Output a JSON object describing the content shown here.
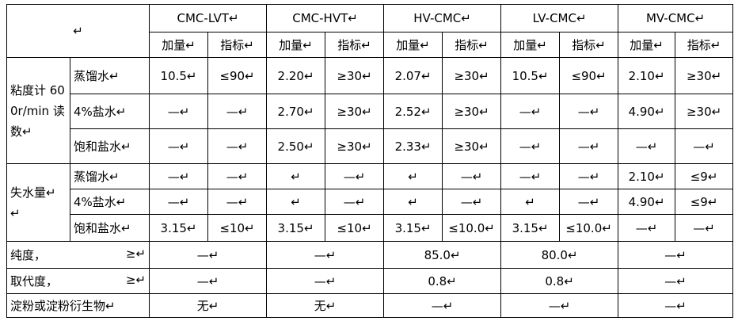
{
  "table": {
    "corner": "↵",
    "groups": [
      "CMC-LVT↵",
      "CMC-HVT↵",
      "HV-CMC↵",
      "LV-CMC↵",
      "MV-CMC↵"
    ],
    "subheaders": [
      "加量↵",
      "指标↵",
      "加量↵",
      "指标↵",
      "加量↵",
      "指标↵",
      "加量↵",
      "指标↵",
      "加量↵",
      "指标↵"
    ],
    "sections": [
      {
        "label": "粘度计 600r/min 读数↵",
        "rows": [
          {
            "label": "蒸馏水↵",
            "cells": [
              "10.5↵",
              "≤90↵",
              "2.20↵",
              "≥30↵",
              "2.07↵",
              "≥30↵",
              "10.5↵",
              "≤90↵",
              "2.10↵",
              "≥30↵"
            ]
          },
          {
            "label": "4%盐水↵",
            "cells": [
              "—↵",
              "—↵",
              "2.70↵",
              "≥30↵",
              "2.52↵",
              "≥30↵",
              "—↵",
              "—↵",
              "4.90↵",
              "≥30↵"
            ]
          },
          {
            "label": "饱和盐水↵",
            "cells": [
              "—↵",
              "—↵",
              "2.50↵",
              "≥30↵",
              "2.33↵",
              "≥30↵",
              "—↵",
              "—↵",
              "—↵",
              "—↵"
            ]
          }
        ]
      },
      {
        "label": "失水量↵ ↵",
        "rows": [
          {
            "label": "蒸馏水↵",
            "cells": [
              "—↵",
              "—↵",
              "↵",
              "—↵",
              "↵",
              "—↵",
              "—↵",
              "—↵",
              "2.10↵",
              "≤9↵"
            ]
          },
          {
            "label": "4%盐水↵",
            "cells": [
              "—↵",
              "—↵",
              "↵",
              "—↵",
              "↵",
              "—↵",
              "↵",
              "—↵",
              "4.90↵",
              "≤9↵"
            ]
          },
          {
            "label": "饱和盐水↵",
            "cells": [
              "3.15↵",
              "≤10↵",
              "3.15↵",
              "≤10↵",
              "3.15↵",
              "≤10.0↵",
              "3.15↵",
              "≤10.0↵",
              "—↵",
              "—↵"
            ]
          }
        ]
      }
    ],
    "summary_rows": [
      {
        "label": "纯度，",
        "sign": "≥↵",
        "cells": [
          "—↵",
          "—↵",
          "85.0↵",
          "80.0↵",
          "—↵"
        ]
      },
      {
        "label": "取代度，",
        "sign": "≥↵",
        "cells": [
          "—↵",
          "—↵",
          "0.8↵",
          "0.8↵",
          "—↵"
        ]
      },
      {
        "label": "淀粉或淀粉衍生物↵",
        "cells": [
          "无↵",
          "无↵",
          "—↵",
          "—↵",
          "—↵"
        ]
      }
    ]
  }
}
